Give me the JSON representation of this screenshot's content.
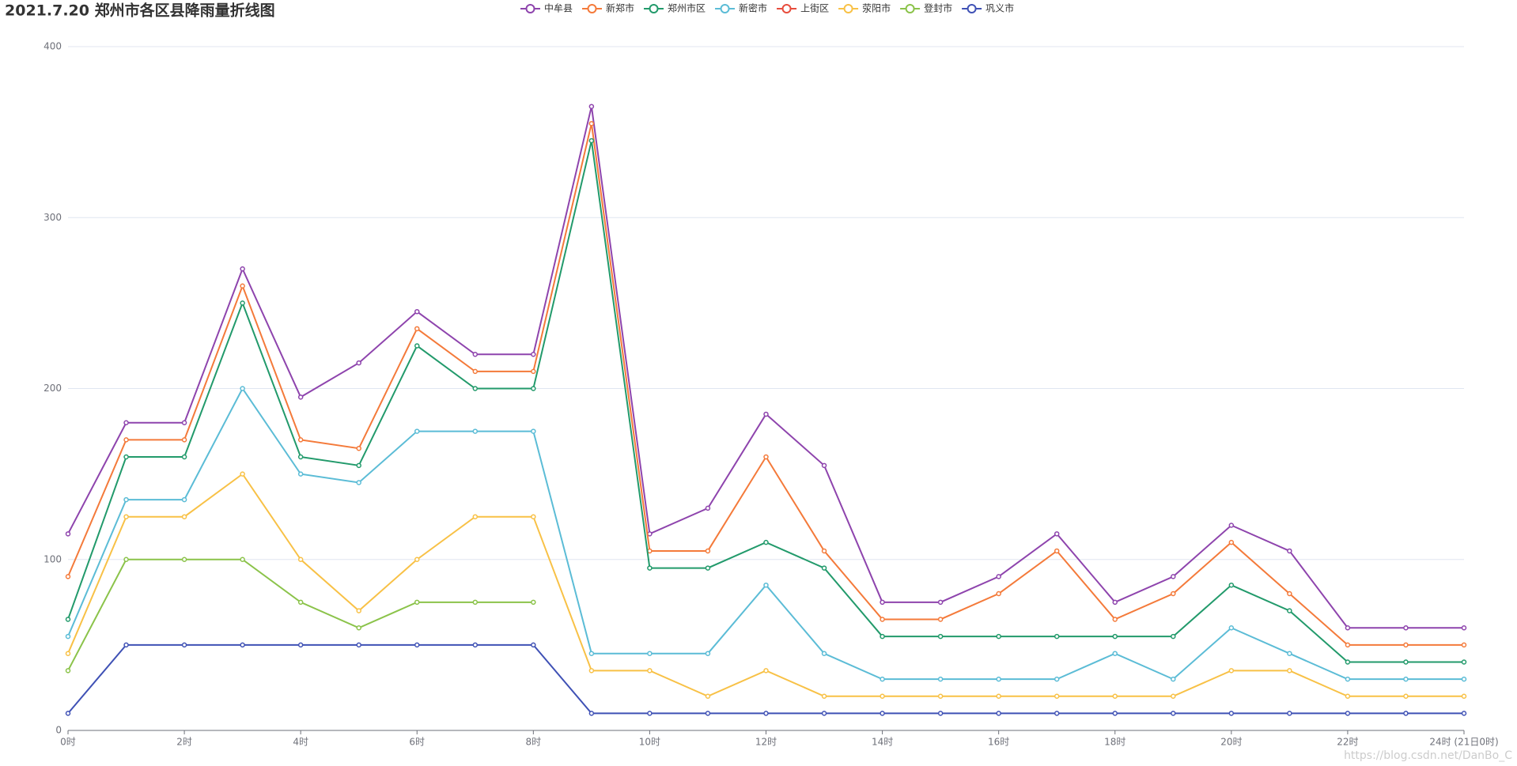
{
  "chart_data": {
    "type": "line",
    "title": "2021.7.20 郑州市各区县降雨量折线图",
    "categories": [
      "0时",
      null,
      "2时",
      null,
      "4时",
      null,
      "6时",
      null,
      "8时",
      null,
      "10时",
      null,
      "12时",
      null,
      "14时",
      null,
      "16时",
      null,
      "18时",
      null,
      "20时",
      null,
      "22时",
      null,
      "24时 (21日0时)"
    ],
    "series": [
      {
        "name": "中牟县",
        "color": "#8e44ad",
        "values": [
          115,
          180,
          180,
          270,
          195,
          215,
          245,
          220,
          220,
          365,
          115,
          130,
          185,
          155,
          75,
          75,
          90,
          115,
          75,
          90,
          120,
          105,
          60,
          60,
          60
        ]
      },
      {
        "name": "新郑市",
        "color": "#f47a3a",
        "values": [
          90,
          170,
          170,
          260,
          170,
          165,
          235,
          210,
          210,
          355,
          105,
          105,
          160,
          105,
          65,
          65,
          80,
          105,
          65,
          80,
          110,
          80,
          50,
          50,
          50
        ]
      },
      {
        "name": "郑州市区",
        "color": "#229a6b",
        "values": [
          65,
          160,
          160,
          250,
          160,
          155,
          225,
          200,
          200,
          345,
          95,
          95,
          110,
          95,
          55,
          55,
          55,
          55,
          55,
          55,
          85,
          70,
          40,
          40,
          40
        ]
      },
      {
        "name": "新密市",
        "color": "#5bbcd6",
        "values": [
          55,
          135,
          135,
          200,
          150,
          145,
          175,
          175,
          175,
          45,
          45,
          45,
          85,
          45,
          30,
          30,
          30,
          30,
          45,
          30,
          60,
          45,
          30,
          30,
          30
        ]
      },
      {
        "name": "上街区",
        "color": "#e74c3c",
        "values": [
          null,
          null,
          null,
          null,
          null,
          null,
          null,
          null,
          null,
          null,
          null,
          null,
          null,
          null,
          null,
          null,
          null,
          null,
          null,
          null,
          null,
          null,
          null,
          null,
          null
        ]
      },
      {
        "name": "荥阳市",
        "color": "#f8c146",
        "values": [
          45,
          125,
          125,
          150,
          100,
          70,
          100,
          125,
          125,
          35,
          35,
          20,
          35,
          20,
          20,
          20,
          20,
          20,
          20,
          20,
          35,
          35,
          20,
          20,
          20
        ]
      },
      {
        "name": "登封市",
        "color": "#8bc34a",
        "values": [
          35,
          100,
          100,
          100,
          75,
          60,
          75,
          75,
          75,
          null,
          null,
          null,
          null,
          null,
          null,
          null,
          null,
          null,
          null,
          null,
          null,
          null,
          null,
          null,
          null
        ]
      },
      {
        "name": "巩义市",
        "color": "#3f51b5",
        "values": [
          10,
          50,
          50,
          50,
          50,
          50,
          50,
          50,
          50,
          10,
          10,
          10,
          10,
          10,
          10,
          10,
          10,
          10,
          10,
          10,
          10,
          10,
          10,
          10,
          10
        ]
      }
    ],
    "ylim": [
      0,
      400
    ],
    "yticks": [
      0,
      100,
      200,
      300,
      400
    ],
    "grid": true,
    "watermark": "https://blog.csdn.net/DanBo_C"
  }
}
